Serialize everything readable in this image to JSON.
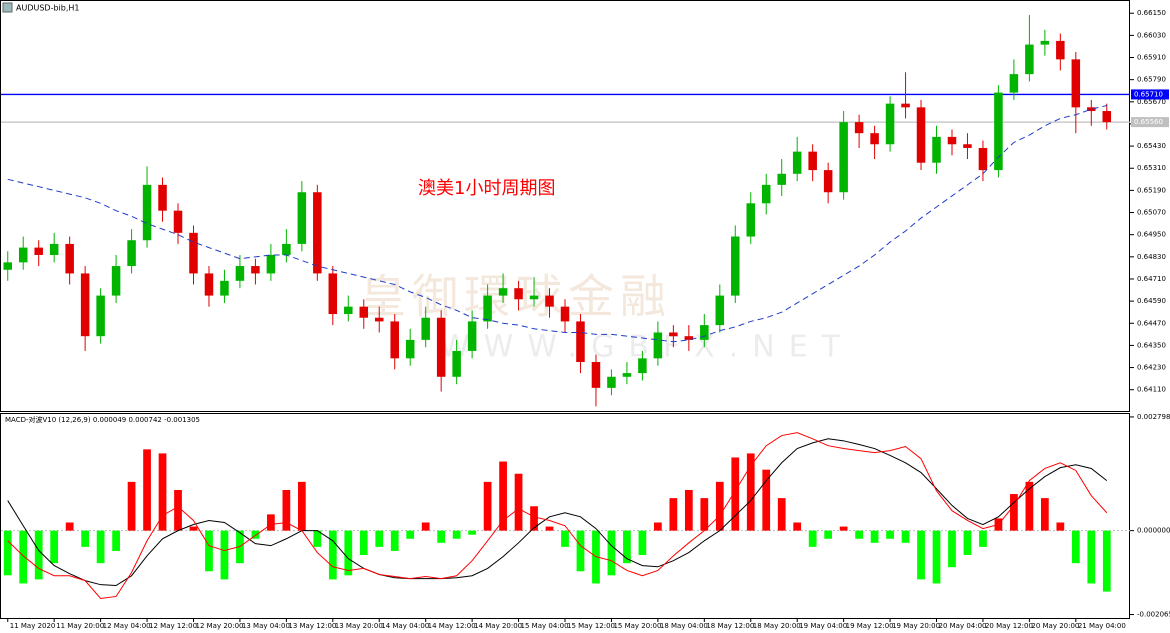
{
  "chart_data": [
    {
      "type": "candlestick",
      "title": "AUDUSD-bib,H1",
      "annotation": "澳美1小时周期图",
      "watermark": [
        "皇御環球金融",
        "WWW.GBFX.NET"
      ],
      "up_color": "#00b400",
      "down_color": "#e00000",
      "open": [
        0.6476,
        0.648,
        0.6488,
        0.6484,
        0.649,
        0.6474,
        0.644,
        0.6462,
        0.6478,
        0.6492,
        0.6522,
        0.6508,
        0.6496,
        0.6474,
        0.6462,
        0.647,
        0.6478,
        0.6474,
        0.6484,
        0.649,
        0.6518,
        0.6474,
        0.6452,
        0.6456,
        0.645,
        0.6448,
        0.6428,
        0.6438,
        0.645,
        0.6418,
        0.6432,
        0.6448,
        0.6462,
        0.6466,
        0.646,
        0.6462,
        0.6456,
        0.6448,
        0.6426,
        0.6412,
        0.6418,
        0.642,
        0.6428,
        0.6442,
        0.644,
        0.6438,
        0.6446,
        0.6462,
        0.6494,
        0.6512,
        0.6522,
        0.6528,
        0.654,
        0.653,
        0.6518,
        0.6556,
        0.655,
        0.6544,
        0.6566,
        0.6564,
        0.6534,
        0.6548,
        0.6544,
        0.6542,
        0.653,
        0.6572,
        0.6582,
        0.6598,
        0.66,
        0.659,
        0.6564,
        0.6562
      ],
      "high": [
        0.6486,
        0.6494,
        0.6492,
        0.6496,
        0.6494,
        0.6478,
        0.6466,
        0.6484,
        0.6498,
        0.6532,
        0.6526,
        0.6512,
        0.65,
        0.6478,
        0.6476,
        0.6484,
        0.6482,
        0.649,
        0.6498,
        0.6524,
        0.6522,
        0.6478,
        0.6462,
        0.646,
        0.6456,
        0.6452,
        0.6444,
        0.6456,
        0.6454,
        0.6438,
        0.6454,
        0.6468,
        0.6474,
        0.647,
        0.6472,
        0.6466,
        0.646,
        0.6452,
        0.643,
        0.6422,
        0.6426,
        0.6432,
        0.6448,
        0.6446,
        0.6446,
        0.6452,
        0.6468,
        0.65,
        0.6518,
        0.6528,
        0.6536,
        0.6548,
        0.6544,
        0.6534,
        0.6562,
        0.656,
        0.6554,
        0.657,
        0.6583,
        0.6568,
        0.6554,
        0.6552,
        0.655,
        0.6546,
        0.6576,
        0.659,
        0.6614,
        0.6606,
        0.6604,
        0.6594,
        0.6568,
        0.6566
      ],
      "low": [
        0.647,
        0.6476,
        0.6478,
        0.648,
        0.6468,
        0.6432,
        0.6436,
        0.6458,
        0.6474,
        0.6488,
        0.6502,
        0.649,
        0.6468,
        0.6456,
        0.6458,
        0.6466,
        0.6468,
        0.647,
        0.648,
        0.6486,
        0.647,
        0.6446,
        0.6448,
        0.6444,
        0.6442,
        0.6422,
        0.6424,
        0.6434,
        0.641,
        0.6414,
        0.6428,
        0.6444,
        0.6458,
        0.6454,
        0.6456,
        0.645,
        0.6442,
        0.642,
        0.6402,
        0.6408,
        0.6414,
        0.6416,
        0.6424,
        0.6434,
        0.6432,
        0.6434,
        0.6442,
        0.6458,
        0.649,
        0.6506,
        0.6516,
        0.6524,
        0.6524,
        0.6512,
        0.6514,
        0.6542,
        0.6536,
        0.654,
        0.6558,
        0.653,
        0.6528,
        0.6538,
        0.6536,
        0.6524,
        0.6526,
        0.6568,
        0.6578,
        0.6592,
        0.6584,
        0.655,
        0.6554,
        0.6552
      ],
      "close": [
        0.648,
        0.6488,
        0.6484,
        0.649,
        0.6474,
        0.644,
        0.6462,
        0.6478,
        0.6492,
        0.6522,
        0.6508,
        0.6496,
        0.6474,
        0.6462,
        0.647,
        0.6478,
        0.6474,
        0.6484,
        0.649,
        0.6518,
        0.6474,
        0.6452,
        0.6456,
        0.645,
        0.6448,
        0.6428,
        0.6438,
        0.645,
        0.6418,
        0.6432,
        0.6448,
        0.6462,
        0.6466,
        0.646,
        0.6462,
        0.6456,
        0.6448,
        0.6426,
        0.6412,
        0.6418,
        0.642,
        0.6428,
        0.6442,
        0.644,
        0.6438,
        0.6446,
        0.6462,
        0.6494,
        0.6512,
        0.6522,
        0.6528,
        0.654,
        0.653,
        0.6518,
        0.6556,
        0.655,
        0.6544,
        0.6566,
        0.6564,
        0.6534,
        0.6548,
        0.6544,
        0.6542,
        0.653,
        0.6572,
        0.6582,
        0.6598,
        0.66,
        0.659,
        0.6564,
        0.6562,
        0.6556
      ],
      "ma": {
        "color": "#1e3cc8",
        "values": [
          0.6525,
          0.6523,
          0.6521,
          0.6519,
          0.6517,
          0.6515,
          0.6512,
          0.6508,
          0.6505,
          0.6501,
          0.6498,
          0.6495,
          0.6491,
          0.6488,
          0.6485,
          0.6482,
          0.6483,
          0.6484,
          0.6484,
          0.6481,
          0.6478,
          0.6476,
          0.6474,
          0.6472,
          0.647,
          0.6468,
          0.6464,
          0.6461,
          0.6457,
          0.6454,
          0.645,
          0.6449,
          0.6447,
          0.6446,
          0.6444,
          0.6443,
          0.6442,
          0.6442,
          0.6441,
          0.6441,
          0.644,
          0.6439,
          0.6438,
          0.6437,
          0.6438,
          0.644,
          0.6443,
          0.6445,
          0.6448,
          0.645,
          0.6453,
          0.6458,
          0.6463,
          0.6468,
          0.6473,
          0.6478,
          0.6484,
          0.6491,
          0.6497,
          0.6504,
          0.651,
          0.6516,
          0.6522,
          0.6528,
          0.6537,
          0.6545,
          0.6549,
          0.6554,
          0.6558,
          0.656,
          0.6563,
          0.6565
        ]
      },
      "hlines": [
        {
          "value": 0.6571,
          "label": "0.65710",
          "color": "#0000ff"
        },
        {
          "value": 0.6556,
          "label": "0.65560",
          "color": "#c0c0c0"
        }
      ],
      "ylim": [
        0.64,
        0.662
      ],
      "yticks": [
        {
          "value": 0.6615,
          "label": "0.66150"
        },
        {
          "value": 0.6603,
          "label": "0.66030"
        },
        {
          "value": 0.6591,
          "label": "0.65910"
        },
        {
          "value": 0.6579,
          "label": "0.65790"
        },
        {
          "value": 0.6567,
          "label": "0.65670"
        },
        {
          "value": 0.6555,
          "label": "0.65550"
        },
        {
          "value": 0.6543,
          "label": "0.65430"
        },
        {
          "value": 0.6531,
          "label": "0.65310"
        },
        {
          "value": 0.6519,
          "label": "0.65190"
        },
        {
          "value": 0.6507,
          "label": "0.65070"
        },
        {
          "value": 0.6495,
          "label": "0.64950"
        },
        {
          "value": 0.6483,
          "label": "0.64830"
        },
        {
          "value": 0.6471,
          "label": "0.64710"
        },
        {
          "value": 0.6459,
          "label": "0.64590"
        },
        {
          "value": 0.6447,
          "label": "0.64470"
        },
        {
          "value": 0.6435,
          "label": "0.64350"
        },
        {
          "value": 0.6423,
          "label": "0.64230"
        },
        {
          "value": 0.6411,
          "label": "0.64110"
        }
      ],
      "xlim": [
        -0.5,
        72.5
      ],
      "xticks": [
        {
          "value": 0,
          "label": "11 May 2020"
        },
        {
          "value": 3,
          "label": "11 May 20:00"
        },
        {
          "value": 6,
          "label": "12 May 04:00"
        },
        {
          "value": 9,
          "label": "12 May 12:00"
        },
        {
          "value": 12,
          "label": "12 May 20:00"
        },
        {
          "value": 15,
          "label": "13 May 04:00"
        },
        {
          "value": 18,
          "label": "13 May 12:00"
        },
        {
          "value": 21,
          "label": "13 May 20:00"
        },
        {
          "value": 24,
          "label": "14 May 04:00"
        },
        {
          "value": 27,
          "label": "14 May 12:00"
        },
        {
          "value": 30,
          "label": "14 May 20:00"
        },
        {
          "value": 33,
          "label": "15 May 04:00"
        },
        {
          "value": 36,
          "label": "15 May 12:00"
        },
        {
          "value": 39,
          "label": "15 May 20:00"
        },
        {
          "value": 42,
          "label": "18 May 04:00"
        },
        {
          "value": 45,
          "label": "18 May 12:00"
        },
        {
          "value": 48,
          "label": "18 May 20:00"
        },
        {
          "value": 51,
          "label": "19 May 04:00"
        },
        {
          "value": 54,
          "label": "19 May 12:00"
        },
        {
          "value": 57,
          "label": "19 May 20:00"
        },
        {
          "value": 60,
          "label": "20 May 04:00"
        },
        {
          "value": 63,
          "label": "20 May 12:00"
        },
        {
          "value": 66,
          "label": "20 May 20:00"
        },
        {
          "value": 69,
          "label": "21 May 04:00"
        }
      ]
    },
    {
      "type": "macd",
      "title": "MACD-对波V10 (12,26,9) 0.000049 0.000742 -0.001305",
      "pos_color": "#ff0000",
      "neg_color": "#00ff00",
      "histogram": [
        -0.0011,
        -0.0013,
        -0.0012,
        -0.0008,
        0.0002,
        -0.0004,
        -0.0008,
        -0.0005,
        0.0012,
        0.002,
        0.0019,
        0.001,
        0.0001,
        -0.001,
        -0.0012,
        -0.0008,
        -0.0002,
        0.0004,
        0.001,
        0.0012,
        -0.0004,
        -0.0012,
        -0.0011,
        -0.0006,
        -0.0004,
        -0.0005,
        -0.0002,
        0.0002,
        -0.0003,
        -0.0002,
        -0.0001,
        0.0012,
        0.0017,
        0.0014,
        0.0006,
        0.0001,
        -0.0004,
        -0.001,
        -0.0013,
        -0.0011,
        -0.0008,
        -0.0006,
        0.0002,
        0.0008,
        0.001,
        0.0008,
        0.0012,
        0.0018,
        0.0019,
        0.0015,
        0.0008,
        0.0002,
        -0.0004,
        -0.0002,
        0.0001,
        -0.0002,
        -0.0003,
        -0.0002,
        -0.0003,
        -0.0012,
        -0.0013,
        -0.0009,
        -0.0006,
        -0.0004,
        0.0003,
        0.0009,
        0.0012,
        0.0008,
        0.0002,
        -0.0008,
        -0.0013,
        -0.0015
      ],
      "series": [
        {
          "color": "#000000",
          "values": [
            0.00074,
            0.00012,
            -0.00049,
            -0.00086,
            -0.00106,
            -0.00123,
            -0.00133,
            -0.00135,
            -0.00111,
            -0.00062,
            -0.0002,
            0,
            0.00015,
            0.00025,
            0.0002,
            -5e-05,
            -0.00032,
            -0.00037,
            -0.0002,
            0,
            0,
            -0.00025,
            -0.00069,
            -0.00093,
            -0.00108,
            -0.00116,
            -0.00118,
            -0.00118,
            -0.00118,
            -0.00116,
            -0.00111,
            -0.00093,
            -0.00064,
            -0.0003,
            7e-05,
            0.00034,
            0.00044,
            0.00034,
            5e-05,
            -0.00037,
            -0.00069,
            -0.00086,
            -0.00089,
            -0.00074,
            -0.00054,
            -0.00025,
            0,
            0.00037,
            0.00074,
            0.00123,
            0.00167,
            0.00202,
            0.00216,
            0.00226,
            0.00221,
            0.00212,
            0.00202,
            0.00185,
            0.00167,
            0.00143,
            0.00103,
            0.00062,
            0.0003,
            0.00015,
            0.00034,
            0.00069,
            0.00103,
            0.00133,
            0.00155,
            0.00162,
            0.00153,
            0.00123
          ]
        },
        {
          "color": "#ff0000",
          "values": [
            -0.00025,
            -0.00062,
            -0.00093,
            -0.00111,
            -0.00111,
            -0.00123,
            -0.00167,
            -0.00162,
            -0.00103,
            -0.00025,
            0.00037,
            0.00059,
            0.00025,
            -0.00037,
            -0.00049,
            -0.00039,
            -0.00012,
            0.00015,
            0.0002,
            0,
            -0.00054,
            -0.00089,
            -0.00098,
            -0.00093,
            -0.00108,
            -0.00113,
            -0.00118,
            -0.00113,
            -0.00118,
            -0.00111,
            -0.00074,
            -0.00025,
            0.00025,
            0.00054,
            0.00034,
            0.00025,
            0.00012,
            -0.00037,
            -0.00064,
            -0.00074,
            -0.00098,
            -0.00111,
            -0.00098,
            -0.00062,
            -0.0003,
            0,
            0.00037,
            0.00098,
            0.0016,
            0.00209,
            0.00234,
            0.00241,
            0.00226,
            0.00209,
            0.00202,
            0.00197,
            0.00192,
            0.00197,
            0.00207,
            0.00177,
            0.00098,
            0.00049,
            0.00025,
            5e-05,
            0.00015,
            0.00062,
            0.00123,
            0.00153,
            0.00167,
            0.00148,
            0.00086,
            0.00044
          ]
        }
      ],
      "ylim": [
        -0.00215,
        0.00287
      ],
      "yticks": [
        {
          "value": 0.002798,
          "label": "0.002798"
        },
        {
          "value": 0,
          "label": "0.000000"
        },
        {
          "value": -0.002065,
          "label": "-0.002065"
        }
      ]
    }
  ]
}
